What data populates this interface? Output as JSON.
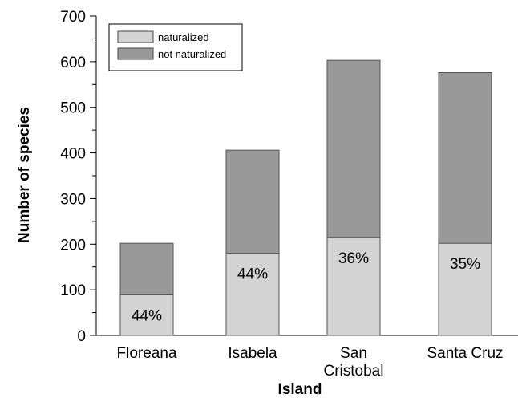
{
  "chart_data": {
    "type": "bar",
    "stacked": true,
    "title": "",
    "xlabel": "Island",
    "ylabel": "Number of species",
    "ylim": [
      0,
      700
    ],
    "yticks": [
      0,
      100,
      200,
      300,
      400,
      500,
      600,
      700
    ],
    "categories": [
      [
        "Floreana"
      ],
      [
        "Isabela"
      ],
      [
        "San",
        "Cristobal"
      ],
      [
        "Santa Cruz"
      ]
    ],
    "series": [
      {
        "name": "naturalized",
        "values": [
          89,
          180,
          215,
          202
        ],
        "color": "#d3d3d3"
      },
      {
        "name": "not naturalized",
        "values": [
          113,
          226,
          388,
          374
        ],
        "color": "#999999"
      }
    ],
    "bar_labels": [
      "44%",
      "44%",
      "36%",
      "35%"
    ],
    "legend_position": "top-left",
    "grid": false
  }
}
